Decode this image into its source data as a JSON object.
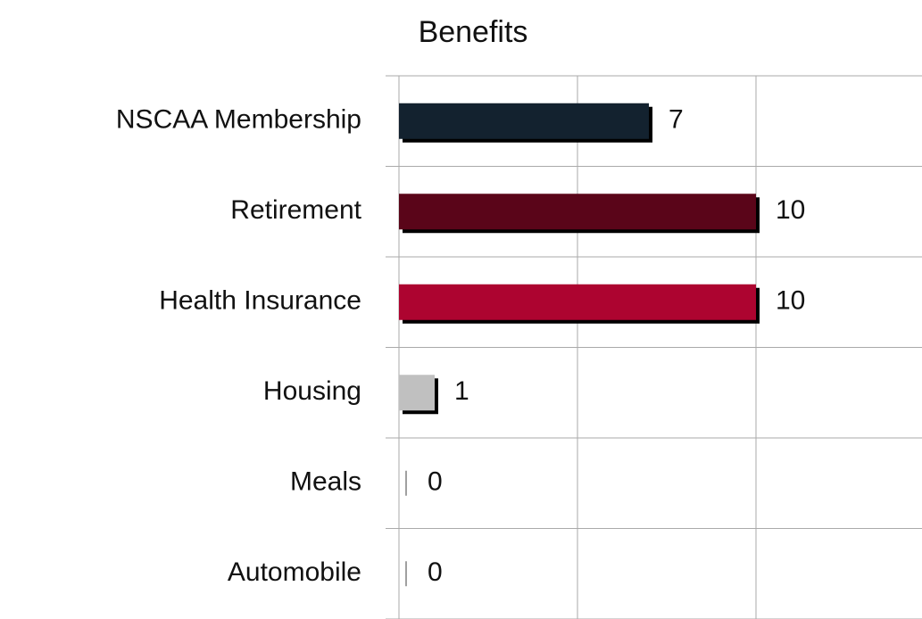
{
  "chart_data": {
    "type": "barh",
    "title": "Benefits",
    "categories": [
      "NSCAA Membership",
      "Retirement",
      "Health Insurance",
      "Housing",
      "Meals",
      "Automobile"
    ],
    "values": [
      7,
      10,
      10,
      1,
      0,
      0
    ],
    "colors": [
      "#13222f",
      "#5a0519",
      "#ad0430",
      "#c0c0c0",
      "#a0a0a0",
      "#a0a0a0"
    ],
    "label_colors": [
      "#13222f",
      "#5a0519",
      "#ad0430",
      "#8c8c8c",
      "#1f5f99",
      "#1f5f99"
    ],
    "xlim": [
      0,
      14.65
    ],
    "xticks": [
      0,
      5,
      10
    ],
    "grid": true
  }
}
